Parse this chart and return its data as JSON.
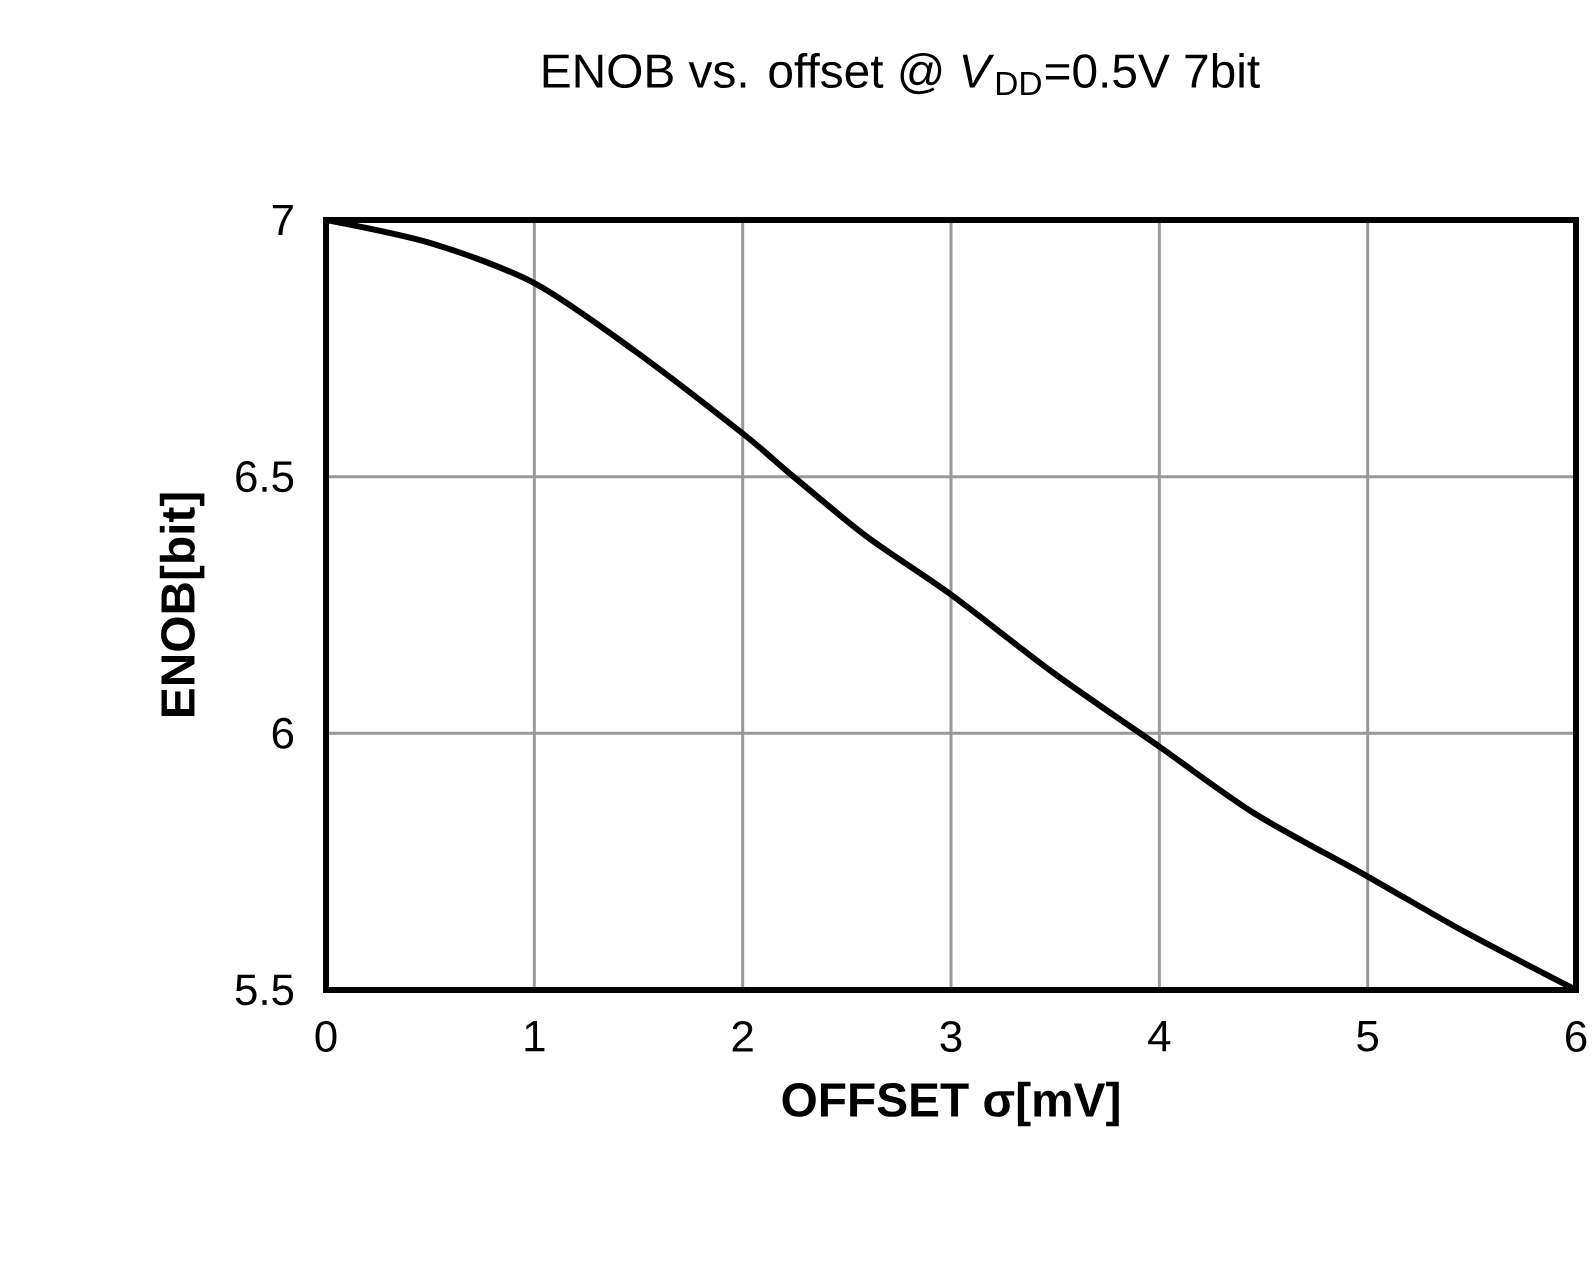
{
  "chart_data": {
    "type": "line",
    "title": "ENOB vs. offset @ *V*$_{DD}$=0.5V  7bit",
    "xlabel": "OFFSET σ[mV]",
    "ylabel": "ENOB[bit]",
    "x": [
      0,
      0.51,
      1,
      1.475,
      2,
      2.244,
      2.596,
      3,
      3.494,
      4,
      4.456,
      5,
      5.48,
      6
    ],
    "values": [
      7,
      6.954,
      6.877,
      6.747,
      6.584,
      6.5,
      6.383,
      6.27,
      6.117,
      5.974,
      5.844,
      5.721,
      5.61,
      5.5
    ],
    "color": "#000000",
    "xlim": [
      0,
      6
    ],
    "ylim": [
      5.5,
      7
    ],
    "xticks": [
      0,
      1,
      2,
      3,
      4,
      5,
      6
    ],
    "yticks": [
      5.5,
      6,
      6.5,
      7
    ],
    "grid": true,
    "marker": "none",
    "line_style": "solid"
  }
}
